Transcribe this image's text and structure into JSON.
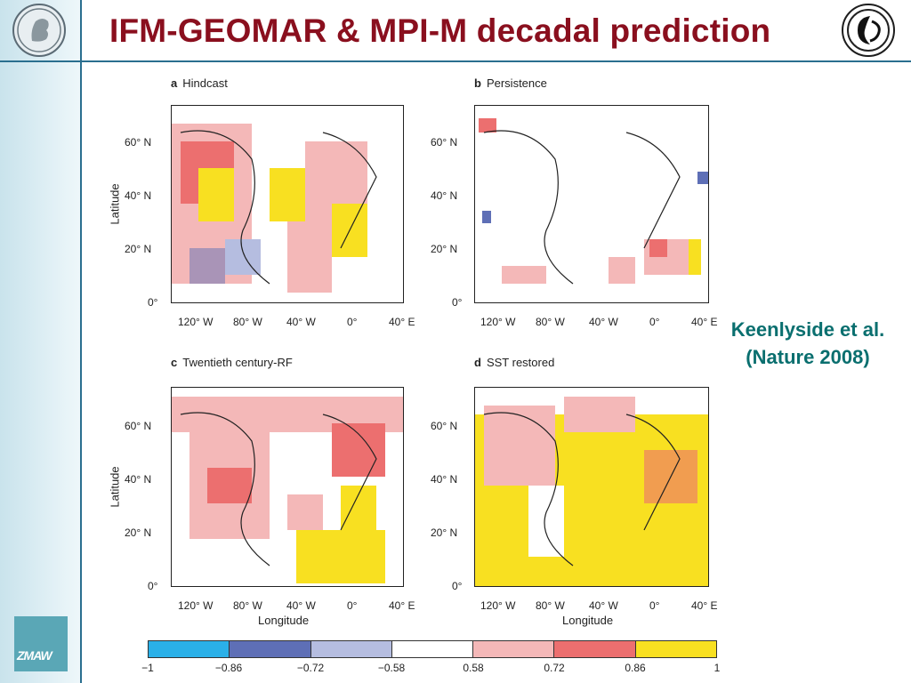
{
  "title": "IFM-GEOMAR & MPI-M decadal prediction",
  "citation": "Keenlyside et al. (Nature 2008)",
  "zmaw_logo": "ZMAW",
  "panels": [
    {
      "letter": "a",
      "name": "Hindcast"
    },
    {
      "letter": "b",
      "name": "Persistence"
    },
    {
      "letter": "c",
      "name": "Twentieth century-RF"
    },
    {
      "letter": "d",
      "name": "SST restored"
    }
  ],
  "axes": {
    "ylabel": "Latitude",
    "xlabel": "Longitude",
    "yticks": [
      "60° N",
      "40° N",
      "20° N",
      "0°"
    ],
    "xticks": [
      "120° W",
      "80° W",
      "40° W",
      "0°",
      "40° E"
    ]
  },
  "colorbar": {
    "ticks": [
      "−1",
      "−0.86",
      "−0.72",
      "−0.58",
      "0.58",
      "0.72",
      "0.86",
      "1"
    ],
    "colors": [
      "#2ab0e8",
      "#5e6fb6",
      "#b5bde0",
      "#ffffff",
      "#f4b8b8",
      "#ec6f6f",
      "#f8e021"
    ]
  },
  "colors": {
    "title": "#8a0f1e",
    "citation": "#0a6f6f",
    "rule": "#2a6f8f"
  }
}
